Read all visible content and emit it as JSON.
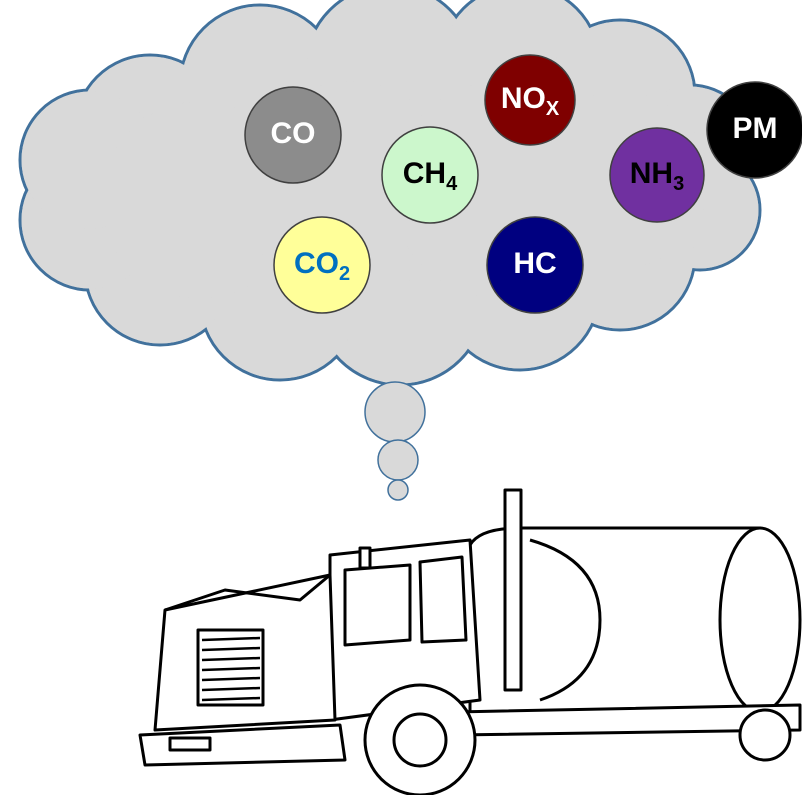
{
  "nodes": [
    {
      "text": "CO",
      "color": "#8c8c8c",
      "text_color": "#ffffff"
    },
    {
      "text": "CH",
      "sub": "4",
      "color": "#ccf7cc",
      "text_color": "#000000"
    },
    {
      "text": "NO",
      "sub": "X",
      "color": "#7f0000",
      "text_color": "#ffffff"
    },
    {
      "text": "NH",
      "sub": "3",
      "color": "#7030a0",
      "text_color": "#000000"
    },
    {
      "text": "PM",
      "color": "#000000",
      "text_color": "#ffffff"
    },
    {
      "text": "CO",
      "sub": "2",
      "color": "#ffff99",
      "text_color": "#0070c0"
    },
    {
      "text": "HC",
      "color": "#000080",
      "text_color": "#ffffff"
    }
  ]
}
